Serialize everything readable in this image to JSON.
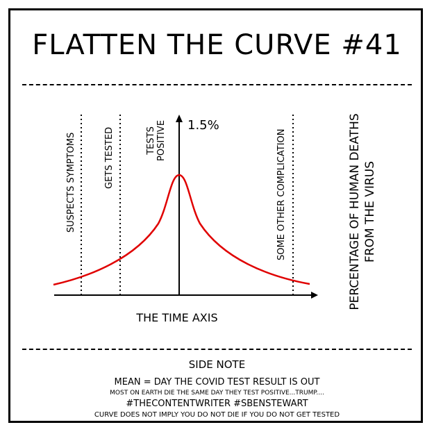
{
  "title": "FLATTEN THE CURVE #41",
  "peak_label": "1.5%",
  "x_axis_label": "THE TIME AXIS",
  "y_axis_label_line1": "PERCENTAGE OF HUMAN DEATHS",
  "y_axis_label_line2": "FROM THE VIRUS",
  "markers": {
    "suspects": "SUSPECTS SYMPTOMS",
    "tested": "GETS TESTED",
    "tests_line1": "TESTS",
    "tests_line2": "POSITIVE",
    "other": "SOME OTHER COMPLICATION"
  },
  "side_note": {
    "title": "SIDE NOTE",
    "lines": [
      "MEAN = DAY THE COVID TEST RESULT IS  OUT",
      "MOST ON EARTH DIE THE SAME DAY THEY TEST POSITIVE...TRUMP....",
      "#THECONTENTWRITER #SBENSTEWART",
      "CURVE DOES NOT IMPLY YOU DO NOT DIE IF YOU DO NOT GET TESTED"
    ]
  },
  "colors": {
    "curve": "#e00000",
    "ink": "#000000",
    "background": "#ffffff"
  }
}
